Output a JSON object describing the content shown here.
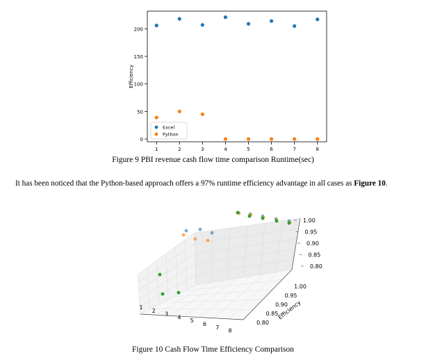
{
  "figure9": {
    "caption": "Figure 9 PBI revenue cash flow time comparison Runtime(sec)",
    "chart_data": {
      "type": "scatter",
      "ylabel": "Efficiency",
      "xlabel": "",
      "x": [
        1,
        2,
        3,
        4,
        5,
        6,
        7,
        8
      ],
      "xlim": [
        0.6,
        8.4
      ],
      "ylim": [
        -5,
        232
      ],
      "yticks": [
        0,
        50,
        100,
        150,
        200
      ],
      "xticks": [
        1,
        2,
        3,
        4,
        5,
        6,
        7,
        8
      ],
      "legend_position": "lower-left",
      "grid": false,
      "series": [
        {
          "name": "Excel",
          "color": "#1f77b4",
          "values": [
            206,
            218,
            207,
            221,
            209,
            214,
            205,
            217
          ]
        },
        {
          "name": "Python",
          "color": "#ff7f0e",
          "values": [
            39,
            50,
            45,
            0,
            0,
            0,
            0,
            0
          ]
        }
      ]
    }
  },
  "paragraph": {
    "text": "It has been noticed that the Python-based approach offers a 97% runtime efficiency advantage in all cases as ",
    "bold": "Figure 10",
    "end": "."
  },
  "figure10": {
    "caption": "Figure 10 Cash Flow Time Efficiency Comparison",
    "chart_data": {
      "type": "scatter",
      "ylabel": "Efficiency",
      "xticks": [
        1,
        2,
        3,
        4,
        5,
        6,
        7,
        8
      ],
      "yticks": [
        "0.80",
        "0.85",
        "0.90",
        "0.95",
        "1.00"
      ],
      "zticks": [
        "0.80",
        "0.85",
        "0.90",
        "0.95",
        "1.00"
      ],
      "grid": true,
      "series": [
        {
          "name": "",
          "color": "#1f77b4",
          "values": [
            1,
            1,
            1,
            1,
            1,
            1,
            1,
            1
          ]
        },
        {
          "name": "",
          "color": "#ff7f0e",
          "values": [
            1,
            1,
            1,
            1,
            1,
            1,
            1,
            1
          ]
        },
        {
          "name": "",
          "color": "#2ca02c",
          "values": [
            1,
            1,
            1,
            1,
            1,
            1,
            1,
            1
          ]
        }
      ]
    }
  }
}
